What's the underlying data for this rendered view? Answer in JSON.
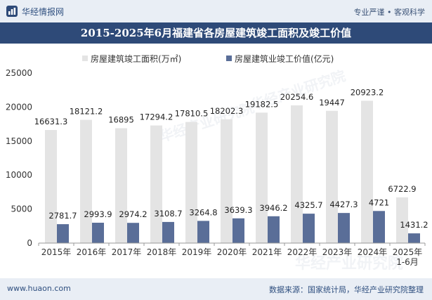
{
  "header": {
    "brand": "华经情报网",
    "slogan": "专业严谨 • 客观科学"
  },
  "title": "2015-2025年6月福建省各房屋建筑竣工面积及竣工价值",
  "footer": {
    "site": "www.huaon.com",
    "source": "数据来源：国家统计局，华经产业研究院整理"
  },
  "watermark": "华经产业研究院",
  "chart_data": {
    "type": "bar",
    "title": "2015-2025年6月福建省各房屋建筑竣工面积及竣工价值",
    "categories": [
      "2015年",
      "2016年",
      "2017年",
      "2018年",
      "2019年",
      "2020年",
      "2021年",
      "2022年",
      "2023年",
      "2024年",
      "2025年\n1-6月"
    ],
    "series": [
      {
        "name": "房屋建筑竣工面积(万㎡)",
        "color": "#e4e4e4",
        "values": [
          16631.3,
          18121.2,
          16895,
          17294.2,
          17810.5,
          18202.3,
          19182.5,
          20254.6,
          19447,
          20923.2,
          6722.9
        ],
        "labels": [
          "16631.3",
          "18121.2",
          "16895",
          "17294.2",
          "17810.5",
          "18202.3",
          "19182.5",
          "20254.6",
          "19447",
          "20923.2",
          "6722.9"
        ]
      },
      {
        "name": "房屋建筑业竣工价值(亿元)",
        "color": "#5a6e98",
        "values": [
          2781.7,
          2993.9,
          2974.2,
          3108.7,
          3264.8,
          3639.3,
          3946.2,
          4325.7,
          4427.3,
          4721,
          1431.2
        ],
        "labels": [
          "2781.7",
          "2993.9",
          "2974.2",
          "3108.7",
          "3264.8",
          "3639.3",
          "3946.2",
          "4325.7",
          "4427.3",
          "4721",
          "1431.2"
        ]
      }
    ],
    "ylim": [
      0,
      25000
    ],
    "yticks": [
      "0",
      "5000",
      "10000",
      "15000",
      "20000",
      "25000"
    ],
    "legend": "top-center",
    "xlabel": "",
    "ylabel": ""
  }
}
